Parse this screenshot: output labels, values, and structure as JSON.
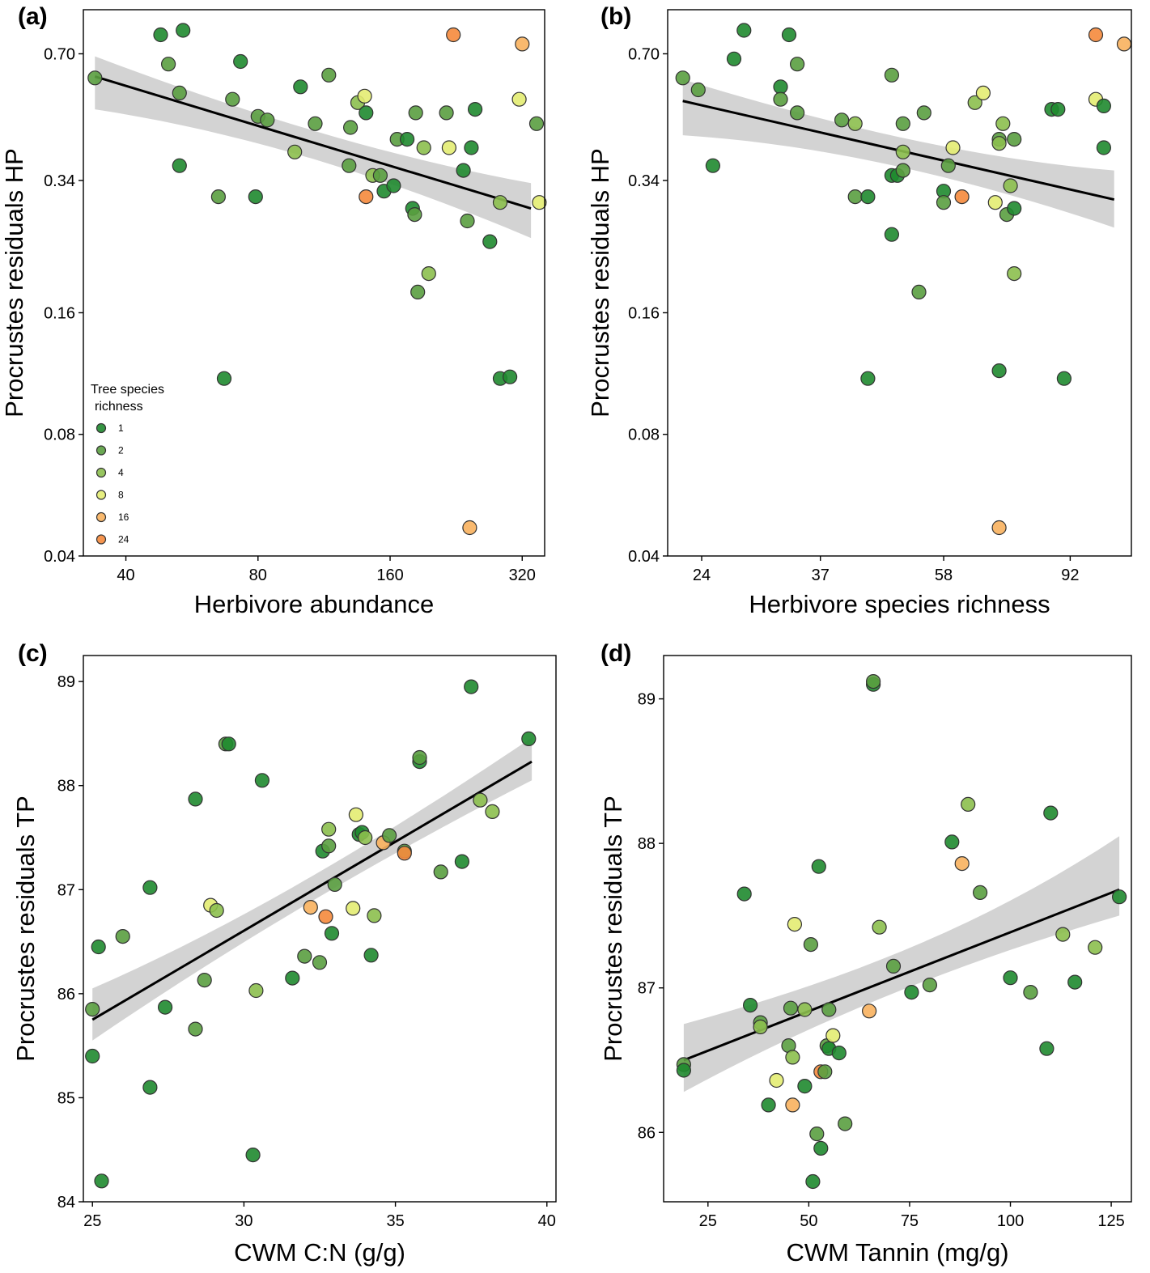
{
  "figure": {
    "legend": {
      "title_lines": [
        "Tree species",
        "richness"
      ]
    }
  },
  "richness_colors": {
    "1": "#1f8a2f",
    "2": "#5a9e40",
    "4": "#8cbf4e",
    "8": "#e3ec72",
    "16": "#f8b15e",
    "24": "#f5893c"
  },
  "chart_data": [
    {
      "panel": "(a)",
      "type": "scatter",
      "xlabel": "Herbivore abundance",
      "ylabel": "Procrustes residuals HP",
      "x_scale": "log",
      "y_scale": "log",
      "xlim": [
        32,
        360
      ],
      "ylim": [
        0.04,
        0.9
      ],
      "xticks": [
        40,
        80,
        160,
        320
      ],
      "xtick_labels": [
        "40",
        "80",
        "160",
        "320"
      ],
      "yticks": [
        0.04,
        0.08,
        0.16,
        0.34,
        0.7
      ],
      "ytick_labels": [
        "0.04",
        "0.08",
        "0.16",
        "0.34",
        "0.70"
      ],
      "legend": {
        "title": "Tree species richness",
        "entries": [
          "1",
          "2",
          "4",
          "8",
          "16",
          "24"
        ],
        "position": "bottom-left"
      },
      "fit": {
        "x": [
          34,
          335
        ],
        "y": [
          0.615,
          0.29
        ],
        "ci_low": [
          0.51,
          0.245
        ],
        "ci_high": [
          0.69,
          0.335
        ]
      },
      "points": [
        {
          "x": 48,
          "y": 0.78,
          "g": 1
        },
        {
          "x": 54,
          "y": 0.8,
          "g": 1
        },
        {
          "x": 34,
          "y": 0.61,
          "g": 2
        },
        {
          "x": 50,
          "y": 0.66,
          "g": 2
        },
        {
          "x": 53,
          "y": 0.56,
          "g": 2
        },
        {
          "x": 53,
          "y": 0.37,
          "g": 1
        },
        {
          "x": 65,
          "y": 0.31,
          "g": 2
        },
        {
          "x": 67,
          "y": 0.11,
          "g": 1
        },
        {
          "x": 73,
          "y": 0.67,
          "g": 1
        },
        {
          "x": 70,
          "y": 0.54,
          "g": 2
        },
        {
          "x": 80,
          "y": 0.49,
          "g": 2
        },
        {
          "x": 84,
          "y": 0.48,
          "g": 2
        },
        {
          "x": 79,
          "y": 0.31,
          "g": 1
        },
        {
          "x": 100,
          "y": 0.58,
          "g": 1
        },
        {
          "x": 97,
          "y": 0.4,
          "g": 4
        },
        {
          "x": 108,
          "y": 0.47,
          "g": 2
        },
        {
          "x": 116,
          "y": 0.62,
          "g": 2
        },
        {
          "x": 130,
          "y": 0.46,
          "g": 2
        },
        {
          "x": 129,
          "y": 0.37,
          "g": 2
        },
        {
          "x": 135,
          "y": 0.53,
          "g": 4
        },
        {
          "x": 140,
          "y": 0.55,
          "g": 8
        },
        {
          "x": 141,
          "y": 0.5,
          "g": 1
        },
        {
          "x": 146,
          "y": 0.35,
          "g": 4
        },
        {
          "x": 152,
          "y": 0.35,
          "g": 2
        },
        {
          "x": 155,
          "y": 0.32,
          "g": 1
        },
        {
          "x": 141,
          "y": 0.31,
          "g": 24
        },
        {
          "x": 163,
          "y": 0.33,
          "g": 1
        },
        {
          "x": 166,
          "y": 0.43,
          "g": 2
        },
        {
          "x": 175,
          "y": 0.43,
          "g": 1
        },
        {
          "x": 183,
          "y": 0.5,
          "g": 2
        },
        {
          "x": 191,
          "y": 0.41,
          "g": 4
        },
        {
          "x": 180,
          "y": 0.29,
          "g": 1
        },
        {
          "x": 182,
          "y": 0.28,
          "g": 2
        },
        {
          "x": 185,
          "y": 0.18,
          "g": 2
        },
        {
          "x": 196,
          "y": 0.2,
          "g": 4
        },
        {
          "x": 215,
          "y": 0.5,
          "g": 2
        },
        {
          "x": 218,
          "y": 0.41,
          "g": 8
        },
        {
          "x": 223,
          "y": 0.78,
          "g": 24
        },
        {
          "x": 235,
          "y": 0.36,
          "g": 1
        },
        {
          "x": 245,
          "y": 0.41,
          "g": 1
        },
        {
          "x": 250,
          "y": 0.51,
          "g": 1
        },
        {
          "x": 240,
          "y": 0.27,
          "g": 2
        },
        {
          "x": 270,
          "y": 0.24,
          "g": 1
        },
        {
          "x": 285,
          "y": 0.3,
          "g": 4
        },
        {
          "x": 285,
          "y": 0.11,
          "g": 1
        },
        {
          "x": 300,
          "y": 0.111,
          "g": 1
        },
        {
          "x": 320,
          "y": 0.74,
          "g": 16
        },
        {
          "x": 315,
          "y": 0.54,
          "g": 8
        },
        {
          "x": 345,
          "y": 0.47,
          "g": 2
        },
        {
          "x": 350,
          "y": 0.3,
          "g": 8
        },
        {
          "x": 243,
          "y": 0.047,
          "g": 16
        }
      ]
    },
    {
      "panel": "(b)",
      "type": "scatter",
      "xlabel": "Herbivore species richness",
      "ylabel": "Procrustes residuals HP",
      "x_scale": "log",
      "y_scale": "log",
      "xlim": [
        21.2,
        115
      ],
      "ylim": [
        0.04,
        0.9
      ],
      "xticks": [
        24,
        37,
        58,
        92
      ],
      "xtick_labels": [
        "24",
        "37",
        "58",
        "92"
      ],
      "yticks": [
        0.04,
        0.08,
        0.16,
        0.34,
        0.7
      ],
      "ytick_labels": [
        "0.04",
        "0.08",
        "0.16",
        "0.34",
        "0.70"
      ],
      "fit": {
        "x": [
          22.4,
          108
        ],
        "y": [
          0.535,
          0.305
        ],
        "ci_low": [
          0.44,
          0.26
        ],
        "ci_high": [
          0.605,
          0.36
        ]
      },
      "points": [
        {
          "x": 22.4,
          "y": 0.61,
          "g": 2
        },
        {
          "x": 23.7,
          "y": 0.57,
          "g": 2
        },
        {
          "x": 25,
          "y": 0.37,
          "g": 1
        },
        {
          "x": 27,
          "y": 0.68,
          "g": 1
        },
        {
          "x": 28,
          "y": 0.8,
          "g": 1
        },
        {
          "x": 33,
          "y": 0.78,
          "g": 1
        },
        {
          "x": 32,
          "y": 0.58,
          "g": 1
        },
        {
          "x": 32,
          "y": 0.54,
          "g": 2
        },
        {
          "x": 34,
          "y": 0.66,
          "g": 2
        },
        {
          "x": 34,
          "y": 0.5,
          "g": 2
        },
        {
          "x": 40,
          "y": 0.48,
          "g": 2
        },
        {
          "x": 42,
          "y": 0.47,
          "g": 4
        },
        {
          "x": 42,
          "y": 0.31,
          "g": 2
        },
        {
          "x": 44,
          "y": 0.31,
          "g": 1
        },
        {
          "x": 44,
          "y": 0.11,
          "g": 1
        },
        {
          "x": 48,
          "y": 0.62,
          "g": 2
        },
        {
          "x": 48,
          "y": 0.35,
          "g": 1
        },
        {
          "x": 48,
          "y": 0.25,
          "g": 1
        },
        {
          "x": 49,
          "y": 0.35,
          "g": 1
        },
        {
          "x": 50,
          "y": 0.47,
          "g": 2
        },
        {
          "x": 50,
          "y": 0.36,
          "g": 2
        },
        {
          "x": 50,
          "y": 0.4,
          "g": 4
        },
        {
          "x": 54,
          "y": 0.5,
          "g": 2
        },
        {
          "x": 53,
          "y": 0.18,
          "g": 2
        },
        {
          "x": 58,
          "y": 0.32,
          "g": 1
        },
        {
          "x": 58,
          "y": 0.3,
          "g": 2
        },
        {
          "x": 59,
          "y": 0.37,
          "g": 2
        },
        {
          "x": 60,
          "y": 0.41,
          "g": 8
        },
        {
          "x": 62,
          "y": 0.31,
          "g": 24
        },
        {
          "x": 65,
          "y": 0.53,
          "g": 4
        },
        {
          "x": 67,
          "y": 0.56,
          "g": 8
        },
        {
          "x": 70,
          "y": 0.3,
          "g": 8
        },
        {
          "x": 71,
          "y": 0.43,
          "g": 2
        },
        {
          "x": 71,
          "y": 0.42,
          "g": 4
        },
        {
          "x": 71,
          "y": 0.115,
          "g": 1
        },
        {
          "x": 71,
          "y": 0.047,
          "g": 16
        },
        {
          "x": 72,
          "y": 0.47,
          "g": 4
        },
        {
          "x": 73,
          "y": 0.28,
          "g": 2
        },
        {
          "x": 74,
          "y": 0.33,
          "g": 4
        },
        {
          "x": 75,
          "y": 0.43,
          "g": 2
        },
        {
          "x": 75,
          "y": 0.29,
          "g": 1
        },
        {
          "x": 75,
          "y": 0.2,
          "g": 4
        },
        {
          "x": 86,
          "y": 0.51,
          "g": 1
        },
        {
          "x": 88,
          "y": 0.51,
          "g": 1
        },
        {
          "x": 90,
          "y": 0.11,
          "g": 1
        },
        {
          "x": 101,
          "y": 0.78,
          "g": 24
        },
        {
          "x": 101,
          "y": 0.54,
          "g": 8
        },
        {
          "x": 104,
          "y": 0.52,
          "g": 1
        },
        {
          "x": 104,
          "y": 0.41,
          "g": 1
        },
        {
          "x": 112,
          "y": 0.74,
          "g": 16
        }
      ]
    },
    {
      "panel": "(c)",
      "type": "scatter",
      "xlabel": "CWM C:N (g/g)",
      "ylabel": "Procrustes residuals TP",
      "x_scale": "linear",
      "y_scale": "linear",
      "xlim": [
        24.7,
        40.3
      ],
      "ylim": [
        84.0,
        89.25
      ],
      "xticks": [
        25,
        30,
        35,
        40
      ],
      "xtick_labels": [
        "25",
        "30",
        "35",
        "40"
      ],
      "yticks": [
        84,
        85,
        86,
        87,
        88,
        89
      ],
      "ytick_labels": [
        "84",
        "85",
        "86",
        "87",
        "88",
        "89"
      ],
      "fit": {
        "x": [
          25.0,
          39.5
        ],
        "y": [
          85.75,
          88.23
        ],
        "ci_low": [
          85.55,
          88.05
        ],
        "ci_high": [
          86.05,
          88.46
        ]
      },
      "points": [
        {
          "x": 25.0,
          "y": 85.4,
          "g": 1
        },
        {
          "x": 25.0,
          "y": 85.85,
          "g": 2
        },
        {
          "x": 25.2,
          "y": 86.45,
          "g": 1
        },
        {
          "x": 25.3,
          "y": 84.2,
          "g": 1
        },
        {
          "x": 26.0,
          "y": 86.55,
          "g": 2
        },
        {
          "x": 26.9,
          "y": 87.02,
          "g": 1
        },
        {
          "x": 26.9,
          "y": 85.1,
          "g": 1
        },
        {
          "x": 27.4,
          "y": 85.87,
          "g": 1
        },
        {
          "x": 28.4,
          "y": 87.87,
          "g": 1
        },
        {
          "x": 28.4,
          "y": 85.66,
          "g": 2
        },
        {
          "x": 28.7,
          "y": 86.13,
          "g": 2
        },
        {
          "x": 28.9,
          "y": 86.85,
          "g": 8
        },
        {
          "x": 29.1,
          "y": 86.8,
          "g": 4
        },
        {
          "x": 29.4,
          "y": 88.4,
          "g": 2
        },
        {
          "x": 29.5,
          "y": 88.4,
          "g": 1
        },
        {
          "x": 30.3,
          "y": 84.45,
          "g": 1
        },
        {
          "x": 30.4,
          "y": 86.03,
          "g": 4
        },
        {
          "x": 30.6,
          "y": 88.05,
          "g": 1
        },
        {
          "x": 31.6,
          "y": 86.15,
          "g": 1
        },
        {
          "x": 32.0,
          "y": 86.36,
          "g": 2
        },
        {
          "x": 32.2,
          "y": 86.83,
          "g": 16
        },
        {
          "x": 32.5,
          "y": 86.3,
          "g": 2
        },
        {
          "x": 32.6,
          "y": 87.37,
          "g": 1
        },
        {
          "x": 32.7,
          "y": 86.74,
          "g": 24
        },
        {
          "x": 32.8,
          "y": 87.42,
          "g": 2
        },
        {
          "x": 32.8,
          "y": 87.58,
          "g": 4
        },
        {
          "x": 32.9,
          "y": 86.58,
          "g": 1
        },
        {
          "x": 33.0,
          "y": 87.05,
          "g": 2
        },
        {
          "x": 33.6,
          "y": 86.82,
          "g": 8
        },
        {
          "x": 33.7,
          "y": 87.72,
          "g": 8
        },
        {
          "x": 33.8,
          "y": 87.53,
          "g": 1
        },
        {
          "x": 33.9,
          "y": 87.55,
          "g": 1
        },
        {
          "x": 34.0,
          "y": 87.5,
          "g": 4
        },
        {
          "x": 34.2,
          "y": 86.37,
          "g": 1
        },
        {
          "x": 34.3,
          "y": 86.75,
          "g": 4
        },
        {
          "x": 34.6,
          "y": 87.45,
          "g": 16
        },
        {
          "x": 34.8,
          "y": 87.52,
          "g": 2
        },
        {
          "x": 35.3,
          "y": 87.37,
          "g": 2
        },
        {
          "x": 35.3,
          "y": 87.35,
          "g": 24
        },
        {
          "x": 35.8,
          "y": 88.23,
          "g": 1
        },
        {
          "x": 35.8,
          "y": 88.27,
          "g": 2
        },
        {
          "x": 36.5,
          "y": 87.17,
          "g": 2
        },
        {
          "x": 37.2,
          "y": 87.27,
          "g": 1
        },
        {
          "x": 37.5,
          "y": 88.95,
          "g": 1
        },
        {
          "x": 37.8,
          "y": 87.86,
          "g": 4
        },
        {
          "x": 38.2,
          "y": 87.75,
          "g": 4
        },
        {
          "x": 39.4,
          "y": 88.45,
          "g": 1
        }
      ]
    },
    {
      "panel": "(d)",
      "type": "scatter",
      "xlabel": "CWM Tannin (mg/g)",
      "ylabel": "Procrustes residuals TP",
      "x_scale": "linear",
      "y_scale": "linear",
      "xlim": [
        14,
        130
      ],
      "ylim": [
        85.52,
        89.3
      ],
      "xticks": [
        25,
        50,
        75,
        100,
        125
      ],
      "xtick_labels": [
        "25",
        "50",
        "75",
        "100",
        "125"
      ],
      "yticks": [
        86,
        87,
        88,
        89
      ],
      "ytick_labels": [
        "86",
        "87",
        "88",
        "89"
      ],
      "fit": {
        "x": [
          19.0,
          127.0
        ],
        "y": [
          86.5,
          87.68
        ],
        "ci_low": [
          86.28,
          87.5
        ],
        "ci_high": [
          86.75,
          88.05
        ]
      },
      "points": [
        {
          "x": 19.0,
          "y": 86.47,
          "g": 2
        },
        {
          "x": 19.0,
          "y": 86.43,
          "g": 1
        },
        {
          "x": 34.0,
          "y": 87.65,
          "g": 1
        },
        {
          "x": 35.5,
          "y": 86.88,
          "g": 1
        },
        {
          "x": 38.0,
          "y": 86.76,
          "g": 2
        },
        {
          "x": 38.0,
          "y": 86.73,
          "g": 4
        },
        {
          "x": 40.0,
          "y": 86.19,
          "g": 1
        },
        {
          "x": 42.0,
          "y": 86.36,
          "g": 8
        },
        {
          "x": 45.0,
          "y": 86.6,
          "g": 2
        },
        {
          "x": 45.5,
          "y": 86.86,
          "g": 2
        },
        {
          "x": 46.0,
          "y": 86.52,
          "g": 4
        },
        {
          "x": 46.0,
          "y": 86.19,
          "g": 16
        },
        {
          "x": 46.5,
          "y": 87.44,
          "g": 8
        },
        {
          "x": 49.0,
          "y": 86.85,
          "g": 4
        },
        {
          "x": 49.0,
          "y": 86.32,
          "g": 1
        },
        {
          "x": 50.5,
          "y": 87.3,
          "g": 2
        },
        {
          "x": 51.0,
          "y": 85.66,
          "g": 1
        },
        {
          "x": 52.0,
          "y": 85.99,
          "g": 2
        },
        {
          "x": 52.5,
          "y": 87.84,
          "g": 1
        },
        {
          "x": 53.0,
          "y": 86.42,
          "g": 24
        },
        {
          "x": 53.0,
          "y": 85.89,
          "g": 1
        },
        {
          "x": 54.0,
          "y": 86.42,
          "g": 2
        },
        {
          "x": 54.5,
          "y": 86.6,
          "g": 2
        },
        {
          "x": 55.0,
          "y": 86.58,
          "g": 1
        },
        {
          "x": 55.0,
          "y": 86.85,
          "g": 2
        },
        {
          "x": 56.0,
          "y": 86.67,
          "g": 8
        },
        {
          "x": 57.5,
          "y": 86.55,
          "g": 1
        },
        {
          "x": 59.0,
          "y": 86.06,
          "g": 2
        },
        {
          "x": 65.0,
          "y": 86.84,
          "g": 16
        },
        {
          "x": 66.0,
          "y": 89.1,
          "g": 1
        },
        {
          "x": 66.0,
          "y": 89.12,
          "g": 2
        },
        {
          "x": 67.5,
          "y": 87.42,
          "g": 4
        },
        {
          "x": 71.0,
          "y": 87.15,
          "g": 2
        },
        {
          "x": 75.5,
          "y": 86.97,
          "g": 1
        },
        {
          "x": 80.0,
          "y": 87.02,
          "g": 2
        },
        {
          "x": 85.5,
          "y": 88.01,
          "g": 1
        },
        {
          "x": 88.0,
          "y": 87.86,
          "g": 16
        },
        {
          "x": 89.5,
          "y": 88.27,
          "g": 4
        },
        {
          "x": 92.5,
          "y": 87.66,
          "g": 2
        },
        {
          "x": 100.0,
          "y": 87.07,
          "g": 1
        },
        {
          "x": 105.0,
          "y": 86.97,
          "g": 2
        },
        {
          "x": 109.0,
          "y": 86.58,
          "g": 1
        },
        {
          "x": 110.0,
          "y": 88.21,
          "g": 1
        },
        {
          "x": 113.0,
          "y": 87.37,
          "g": 4
        },
        {
          "x": 116.0,
          "y": 87.04,
          "g": 1
        },
        {
          "x": 121.0,
          "y": 87.28,
          "g": 4
        },
        {
          "x": 127.0,
          "y": 87.63,
          "g": 1
        }
      ]
    }
  ]
}
